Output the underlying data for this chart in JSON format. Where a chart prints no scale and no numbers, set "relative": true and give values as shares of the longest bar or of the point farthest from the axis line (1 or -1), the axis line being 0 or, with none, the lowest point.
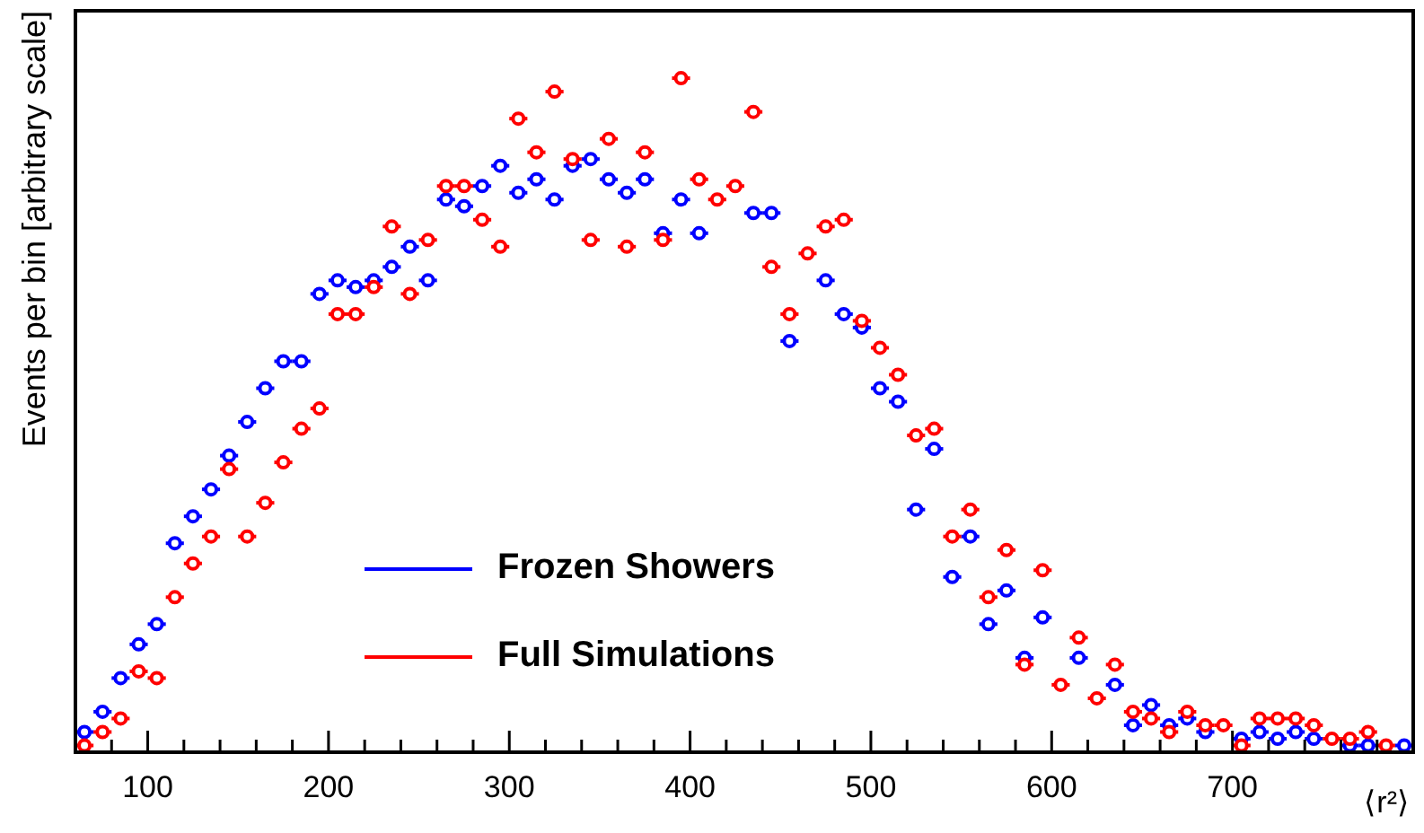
{
  "chart_data": {
    "type": "scatter",
    "xlabel": "⟨r²⟩",
    "ylabel": "Events per bin [arbitrary scale]",
    "relative": true,
    "marker": "circle",
    "grid": false,
    "legend": "bottom left",
    "x": [
      65,
      75,
      85,
      95,
      105,
      115,
      125,
      135,
      145,
      155,
      165,
      175,
      185,
      195,
      205,
      215,
      225,
      235,
      245,
      255,
      265,
      275,
      285,
      295,
      305,
      315,
      325,
      335,
      345,
      355,
      365,
      375,
      385,
      395,
      405,
      415,
      425,
      435,
      445,
      455,
      465,
      475,
      485,
      495,
      505,
      515,
      525,
      535,
      545,
      555,
      565,
      575,
      585,
      595,
      605,
      615,
      625,
      635,
      645,
      655,
      665,
      675,
      685,
      695,
      705,
      715,
      725,
      735,
      745,
      755,
      765,
      775,
      785,
      795
    ],
    "xlim": [
      60,
      800
    ],
    "xticks": [
      {
        "value": 60,
        "label": null
      },
      {
        "value": 80,
        "label": null
      },
      100,
      {
        "value": 120,
        "label": null
      },
      {
        "value": 140,
        "label": null
      },
      {
        "value": 160,
        "label": null
      },
      {
        "value": 180,
        "label": null
      },
      200,
      {
        "value": 220,
        "label": null
      },
      {
        "value": 240,
        "label": null
      },
      {
        "value": 260,
        "label": null
      },
      {
        "value": 280,
        "label": null
      },
      300,
      {
        "value": 320,
        "label": null
      },
      {
        "value": 340,
        "label": null
      },
      {
        "value": 360,
        "label": null
      },
      {
        "value": 380,
        "label": null
      },
      400,
      {
        "value": 420,
        "label": null
      },
      {
        "value": 440,
        "label": null
      },
      {
        "value": 460,
        "label": null
      },
      {
        "value": 480,
        "label": null
      },
      500,
      {
        "value": 520,
        "label": null
      },
      {
        "value": 540,
        "label": null
      },
      {
        "value": 560,
        "label": null
      },
      {
        "value": 580,
        "label": null
      },
      600,
      {
        "value": 620,
        "label": null
      },
      {
        "value": 640,
        "label": null
      },
      {
        "value": 660,
        "label": null
      },
      {
        "value": 680,
        "label": null
      },
      700,
      {
        "value": 720,
        "label": null
      },
      {
        "value": 740,
        "label": null
      },
      {
        "value": 760,
        "label": null
      },
      {
        "value": 780,
        "label": null
      }
    ],
    "series": [
      {
        "name": "Frozen Showers",
        "color": "#0000ff",
        "values": [
          0.03,
          0.06,
          0.11,
          0.16,
          0.19,
          0.31,
          0.35,
          0.39,
          0.44,
          0.49,
          0.54,
          0.58,
          0.58,
          0.68,
          0.7,
          0.69,
          0.7,
          0.72,
          0.75,
          0.7,
          0.82,
          0.81,
          0.84,
          0.87,
          0.83,
          0.85,
          0.82,
          0.87,
          0.88,
          0.85,
          0.83,
          0.85,
          0.77,
          0.82,
          0.77,
          null,
          null,
          0.8,
          0.8,
          0.61,
          null,
          0.7,
          0.65,
          0.63,
          0.54,
          0.52,
          0.36,
          0.45,
          0.26,
          0.32,
          0.19,
          0.24,
          0.14,
          0.2,
          null,
          0.14,
          null,
          0.1,
          0.04,
          0.07,
          0.04,
          0.05,
          0.03,
          null,
          0.02,
          0.03,
          0.02,
          0.03,
          0.02,
          null,
          0.01,
          0.01,
          null,
          0.01
        ],
        "xerrors": [
          5,
          5,
          5,
          5,
          5,
          5,
          5,
          5,
          5,
          5,
          5,
          5,
          5,
          5,
          5,
          5,
          5,
          5,
          5,
          5,
          5,
          5,
          5,
          5,
          5,
          5,
          5,
          5,
          5,
          5,
          5,
          5,
          5,
          5,
          5,
          null,
          null,
          5,
          5,
          5,
          null,
          5,
          5,
          5,
          5,
          5,
          5,
          5,
          5,
          5,
          5,
          5,
          5,
          5,
          null,
          5,
          null,
          5,
          5,
          5,
          5,
          5,
          5,
          null,
          5,
          5,
          5,
          5,
          5,
          null,
          5,
          5,
          null,
          5
        ]
      },
      {
        "name": "Full Simulations",
        "color": "#ff0000",
        "values": [
          0.01,
          0.03,
          0.05,
          0.12,
          0.11,
          0.23,
          0.28,
          0.32,
          0.42,
          0.32,
          0.37,
          0.43,
          0.48,
          0.51,
          0.65,
          0.65,
          0.69,
          0.78,
          0.68,
          0.76,
          0.84,
          0.84,
          0.79,
          0.75,
          0.94,
          0.89,
          0.98,
          0.88,
          0.76,
          0.91,
          0.75,
          0.89,
          0.76,
          1.0,
          0.85,
          0.82,
          0.84,
          0.95,
          0.72,
          0.65,
          0.74,
          0.78,
          0.79,
          0.64,
          0.6,
          0.56,
          0.47,
          0.48,
          0.32,
          0.36,
          0.23,
          0.3,
          0.13,
          0.27,
          0.1,
          0.17,
          0.08,
          0.13,
          0.06,
          0.05,
          0.03,
          0.06,
          0.04,
          0.04,
          0.01,
          0.05,
          0.05,
          0.05,
          0.04,
          0.02,
          0.02,
          0.03,
          0.01,
          null
        ],
        "xerrors": [
          5,
          5,
          5,
          5,
          5,
          5,
          5,
          5,
          5,
          5,
          5,
          5,
          5,
          5,
          5,
          5,
          5,
          5,
          5,
          5,
          5,
          5,
          5,
          5,
          5,
          5,
          5,
          5,
          5,
          5,
          5,
          5,
          5,
          5,
          5,
          5,
          5,
          5,
          5,
          5,
          5,
          5,
          5,
          5,
          5,
          5,
          5,
          5,
          5,
          5,
          5,
          5,
          5,
          5,
          5,
          5,
          5,
          5,
          5,
          5,
          5,
          5,
          5,
          5,
          5,
          5,
          5,
          5,
          5,
          5,
          5,
          5,
          5,
          null
        ]
      }
    ]
  }
}
